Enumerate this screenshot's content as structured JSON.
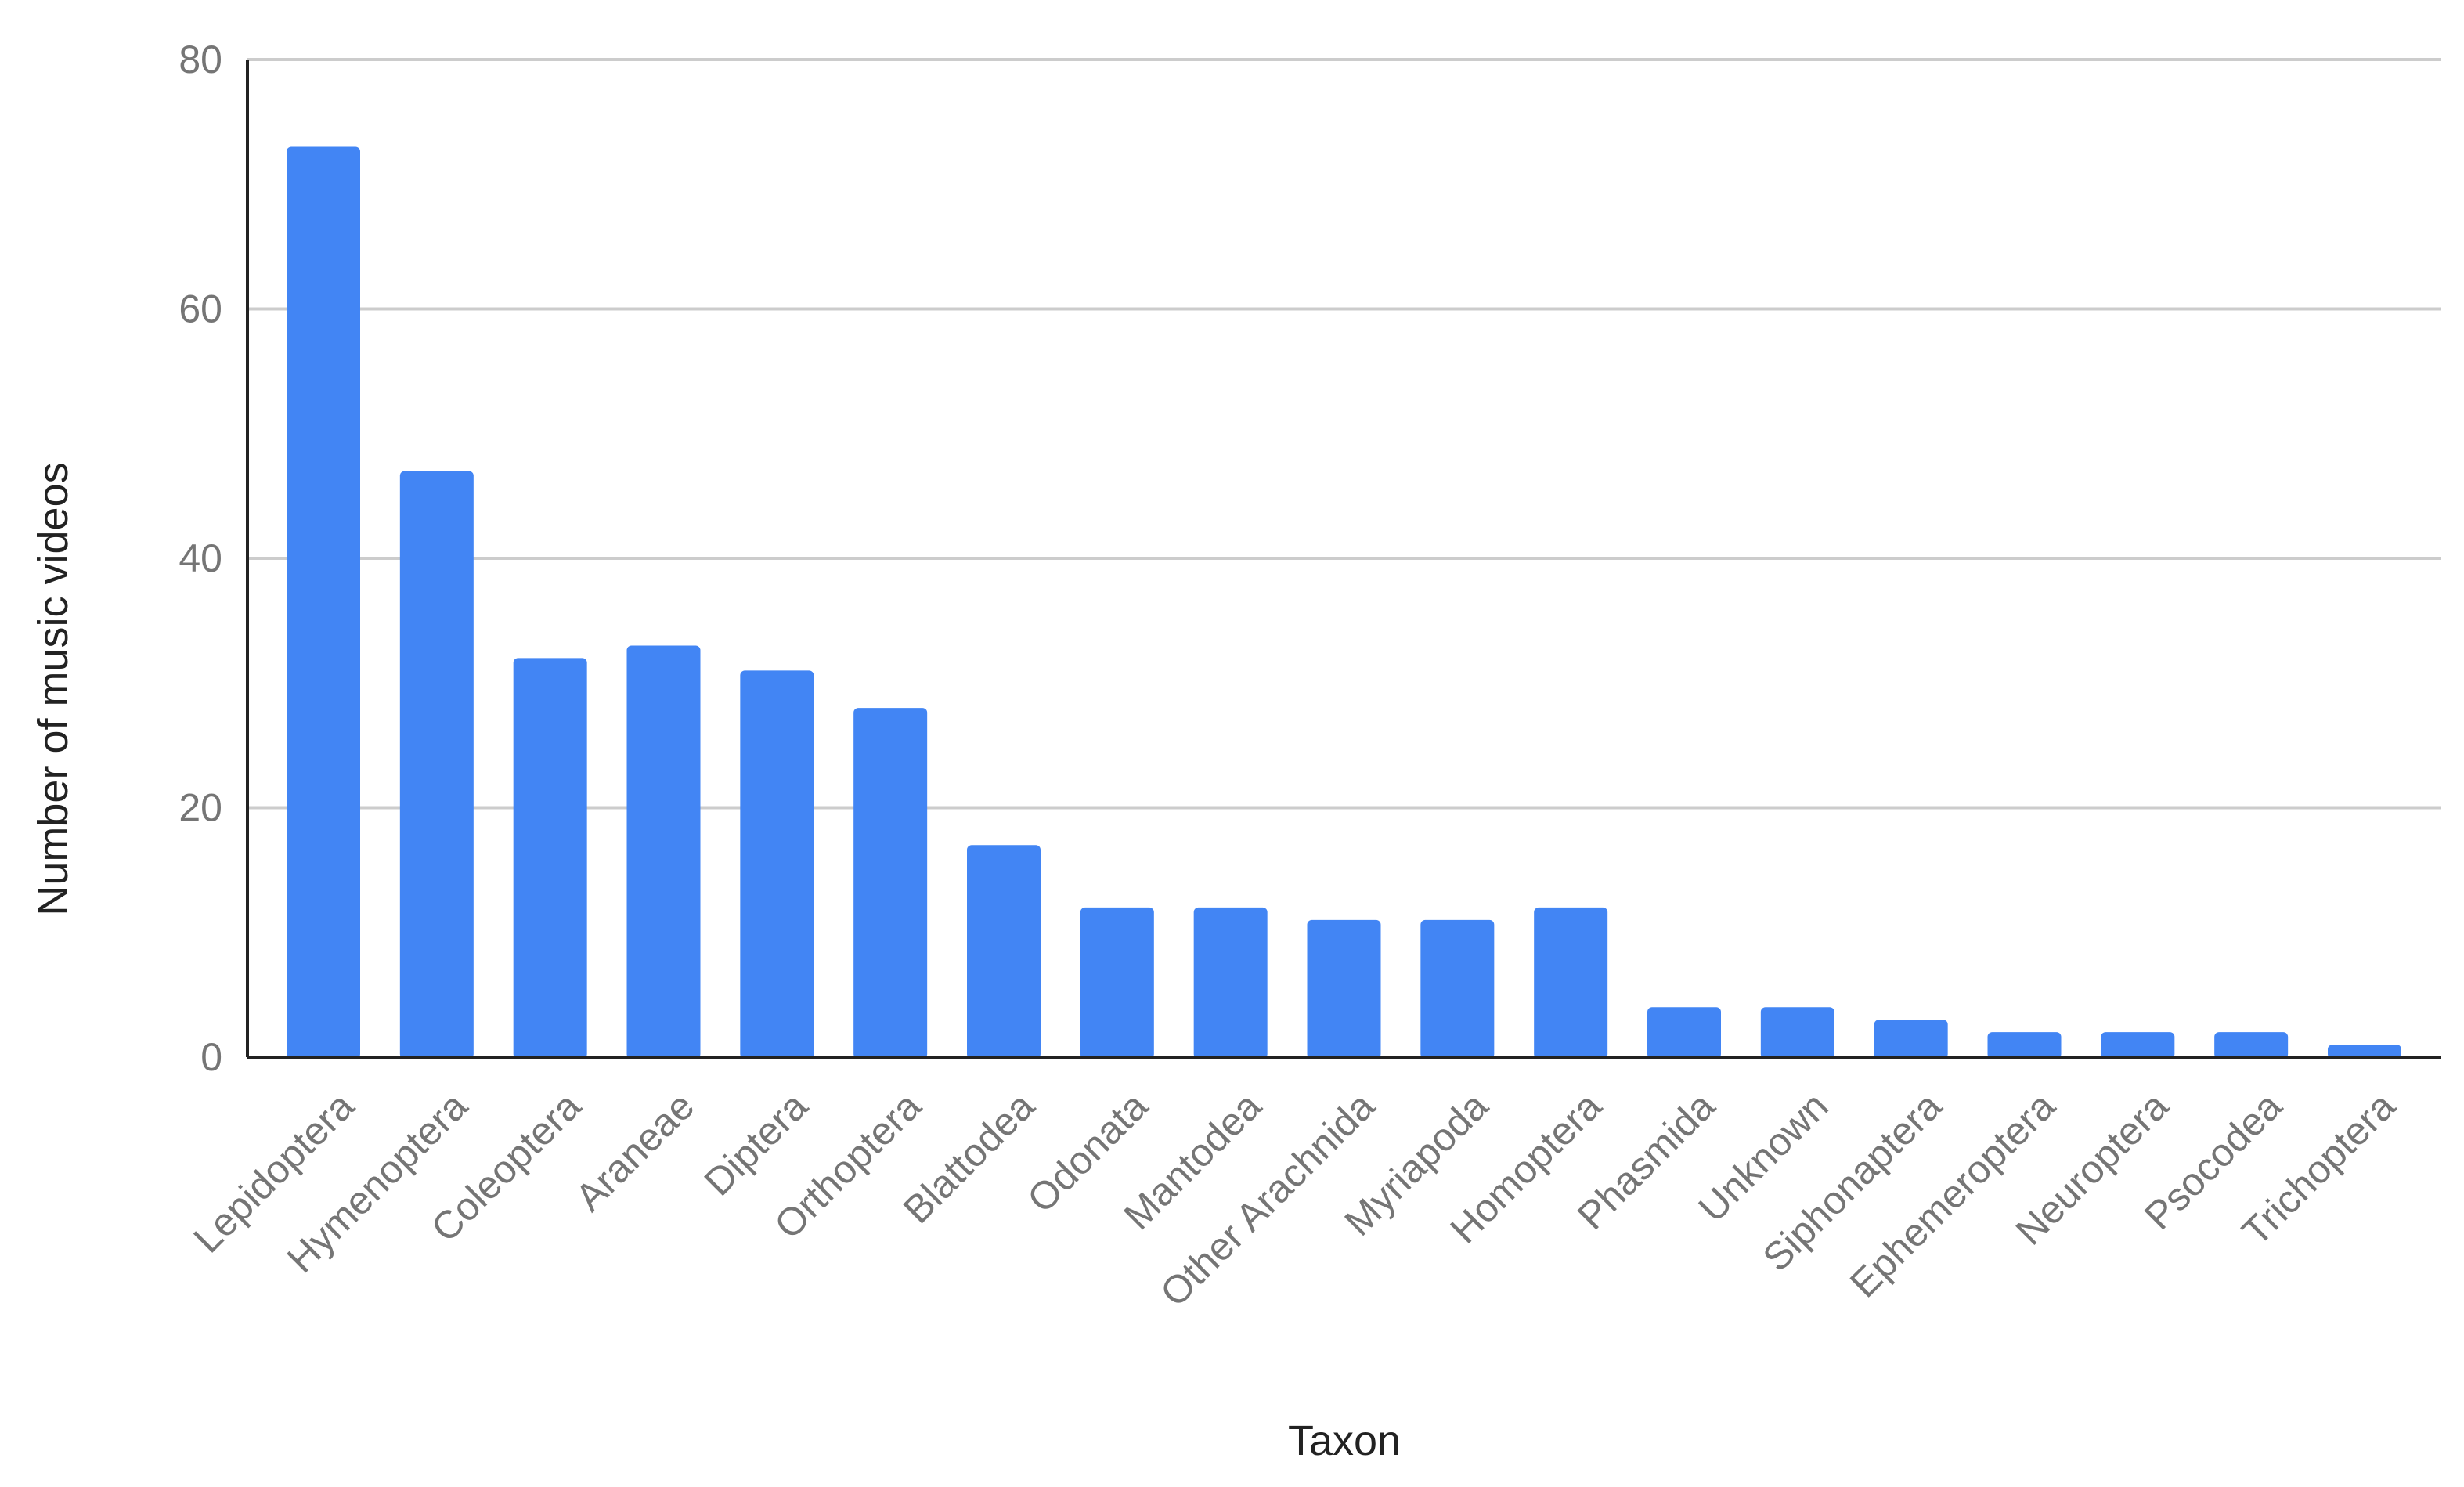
{
  "chart_data": {
    "type": "bar",
    "title": "",
    "xlabel": "Taxon",
    "ylabel": "Number of music videos",
    "ylim": [
      0,
      80
    ],
    "yticks": [
      0,
      20,
      40,
      60,
      80
    ],
    "grid": true,
    "bar_color": "#4285F4",
    "categories": [
      "Lepidoptera",
      "Hymenoptera",
      "Coleoptera",
      "Araneae",
      "Diptera",
      "Orthoptera",
      "Blattodea",
      "Odonata",
      "Mantodea",
      "Other Arachnida",
      "Myriapoda",
      "Homoptera",
      "Phasmida",
      "Unknown",
      "Siphonaptera",
      "Ephemeroptera",
      "Neuroptera",
      "Psocodea",
      "Trichoptera"
    ],
    "values": [
      73,
      47,
      32,
      33,
      31,
      28,
      17,
      12,
      12,
      11,
      11,
      12,
      4,
      4,
      3,
      2,
      2,
      2,
      1
    ]
  }
}
